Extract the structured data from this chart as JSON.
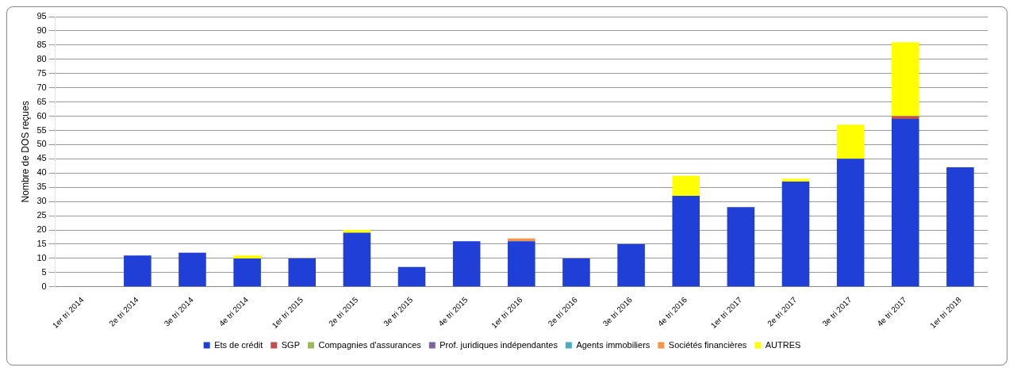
{
  "chart_data": {
    "type": "bar",
    "stacked": true,
    "ylabel": "Nombre de DOS reçues",
    "categories": [
      "1er tri 2014",
      "2e tri 2014",
      "3e tri 2014",
      "4e tri 2014",
      "1er tri 2015",
      "2e tri 2015",
      "3e tri 2015",
      "4e tri 2015",
      "1er tri 2016",
      "2e tri 2016",
      "3e tri 2016",
      "4e tri 2016",
      "1er tri 2017",
      "2e tri 2017",
      "3e tri 2017",
      "4e tri 2017",
      "1er tri 2018"
    ],
    "series": [
      {
        "name": "Ets de crédit",
        "color": "#1f3fd6",
        "values": [
          null,
          11,
          12,
          10,
          10,
          19,
          7,
          16,
          16,
          10,
          15,
          32,
          28,
          37,
          45,
          59,
          42
        ]
      },
      {
        "name": "SGP",
        "color": "#c0504d",
        "values": [
          null,
          null,
          null,
          null,
          null,
          null,
          null,
          null,
          null,
          null,
          null,
          null,
          null,
          null,
          null,
          1,
          null
        ]
      },
      {
        "name": "Compagnies d'assurances",
        "color": "#9bbb59",
        "values": [
          null,
          null,
          null,
          null,
          null,
          null,
          null,
          null,
          null,
          null,
          null,
          null,
          null,
          null,
          null,
          null,
          null
        ]
      },
      {
        "name": "Prof. juridiques indépendantes",
        "color": "#8064a2",
        "values": [
          null,
          null,
          null,
          null,
          null,
          null,
          null,
          null,
          null,
          null,
          null,
          null,
          null,
          null,
          null,
          null,
          null
        ]
      },
      {
        "name": "Agents immobiliers",
        "color": "#4bacc6",
        "values": [
          null,
          null,
          null,
          null,
          null,
          null,
          null,
          null,
          null,
          null,
          null,
          null,
          null,
          null,
          null,
          null,
          null
        ]
      },
      {
        "color": "#d9d9d9",
        "values": [
          null,
          null,
          null,
          null,
          null,
          null,
          null,
          null,
          null,
          null,
          null,
          null,
          null,
          null,
          null,
          null,
          null
        ]
      },
      {
        "name": "Sociétés financières",
        "color": "#f79646",
        "values": [
          null,
          null,
          null,
          null,
          null,
          null,
          null,
          null,
          1,
          null,
          null,
          null,
          null,
          null,
          null,
          null,
          null
        ]
      },
      {
        "name": "AUTRES",
        "color": "#ffff00",
        "values": [
          null,
          null,
          null,
          1,
          null,
          1,
          null,
          null,
          null,
          null,
          null,
          7,
          null,
          1,
          12,
          26,
          null
        ]
      }
    ],
    "ylim": [
      0,
      95
    ],
    "yticks": [
      0,
      5,
      10,
      15,
      20,
      25,
      30,
      35,
      40,
      45,
      50,
      55,
      60,
      65,
      70,
      75,
      80,
      85,
      90,
      95
    ],
    "grid": "y",
    "legend": "bottom"
  }
}
